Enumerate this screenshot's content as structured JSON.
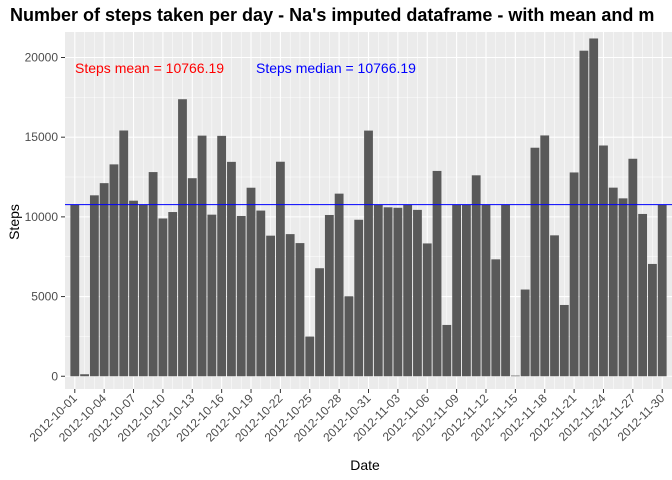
{
  "chart_data": {
    "type": "bar",
    "title": "Number of steps taken per day - Na's imputed dataframe - with mean and m",
    "xlabel": "Date",
    "ylabel": "Steps",
    "ylim": [
      -800,
      21600
    ],
    "yticks": [
      0,
      5000,
      10000,
      15000,
      20000
    ],
    "xticks": [
      "2012-10-01",
      "2012-10-04",
      "2012-10-07",
      "2012-10-10",
      "2012-10-13",
      "2012-10-16",
      "2012-10-19",
      "2012-10-22",
      "2012-10-25",
      "2012-10-28",
      "2012-10-31",
      "2012-11-03",
      "2012-11-06",
      "2012-11-09",
      "2012-11-12",
      "2012-11-15",
      "2012-11-18",
      "2012-11-21",
      "2012-11-24",
      "2012-11-27",
      "2012-11-30"
    ],
    "categories": [
      "2012-10-01",
      "2012-10-02",
      "2012-10-03",
      "2012-10-04",
      "2012-10-05",
      "2012-10-06",
      "2012-10-07",
      "2012-10-08",
      "2012-10-09",
      "2012-10-10",
      "2012-10-11",
      "2012-10-12",
      "2012-10-13",
      "2012-10-14",
      "2012-10-15",
      "2012-10-16",
      "2012-10-17",
      "2012-10-18",
      "2012-10-19",
      "2012-10-20",
      "2012-10-21",
      "2012-10-22",
      "2012-10-23",
      "2012-10-24",
      "2012-10-25",
      "2012-10-26",
      "2012-10-27",
      "2012-10-28",
      "2012-10-29",
      "2012-10-30",
      "2012-10-31",
      "2012-11-01",
      "2012-11-02",
      "2012-11-03",
      "2012-11-04",
      "2012-11-05",
      "2012-11-06",
      "2012-11-07",
      "2012-11-08",
      "2012-11-09",
      "2012-11-10",
      "2012-11-11",
      "2012-11-12",
      "2012-11-13",
      "2012-11-14",
      "2012-11-15",
      "2012-11-16",
      "2012-11-17",
      "2012-11-18",
      "2012-11-19",
      "2012-11-20",
      "2012-11-21",
      "2012-11-22",
      "2012-11-23",
      "2012-11-24",
      "2012-11-25",
      "2012-11-26",
      "2012-11-27",
      "2012-11-28",
      "2012-11-29",
      "2012-11-30"
    ],
    "values": [
      10766,
      126,
      11352,
      12116,
      13294,
      15420,
      11015,
      10766,
      12811,
      9900,
      10304,
      17382,
      12426,
      15098,
      10139,
      15084,
      13452,
      10056,
      11829,
      10395,
      8821,
      13460,
      8918,
      8355,
      2492,
      6778,
      10119,
      11458,
      5018,
      9819,
      15414,
      10766,
      10600,
      10571,
      10766,
      10439,
      8334,
      12883,
      3219,
      10766,
      10766,
      12608,
      10765,
      7336,
      10766,
      41,
      5441,
      14339,
      15110,
      8841,
      4472,
      12787,
      20427,
      21194,
      14478,
      11834,
      11162,
      13646,
      10183,
      7047,
      10766
    ],
    "mean_line": 10766.19,
    "annotations": [
      {
        "text": "Steps mean = 10766.19",
        "color": "#ff0000"
      },
      {
        "text": "Steps median = 10766.19",
        "color": "#0000ff"
      }
    ],
    "bar_color": "#595959",
    "line_color": "#0000ff",
    "panel_color": "#ebebeb",
    "grid_color": "#ffffff",
    "grid": true
  }
}
